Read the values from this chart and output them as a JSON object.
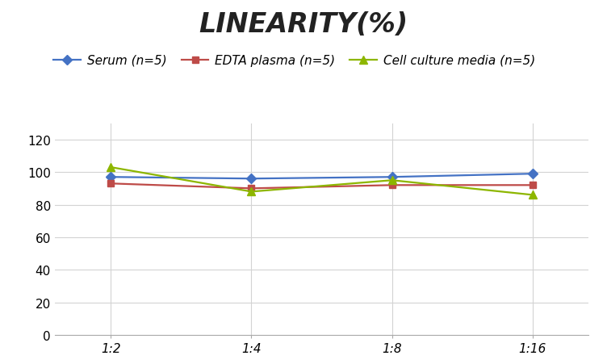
{
  "title": "LINEARITY(%)",
  "x_labels": [
    "1:2",
    "1:4",
    "1:8",
    "1:16"
  ],
  "x_positions": [
    0,
    1,
    2,
    3
  ],
  "series": [
    {
      "label": "Serum (n=5)",
      "values": [
        97,
        96,
        97,
        99
      ],
      "color": "#4472C4",
      "marker": "D",
      "marker_size": 6,
      "linewidth": 1.6
    },
    {
      "label": "EDTA plasma (n=5)",
      "values": [
        93,
        90,
        92,
        92
      ],
      "color": "#BE4B48",
      "marker": "s",
      "marker_size": 6,
      "linewidth": 1.6
    },
    {
      "label": "Cell culture media (n=5)",
      "values": [
        103,
        88,
        95,
        86
      ],
      "color": "#8DB600",
      "marker": "^",
      "marker_size": 7,
      "linewidth": 1.6
    }
  ],
  "ylim": [
    0,
    130
  ],
  "yticks": [
    0,
    20,
    40,
    60,
    80,
    100,
    120
  ],
  "background_color": "#FFFFFF",
  "grid_color": "#D3D3D3",
  "title_fontsize": 24,
  "tick_fontsize": 11,
  "legend_fontsize": 11
}
